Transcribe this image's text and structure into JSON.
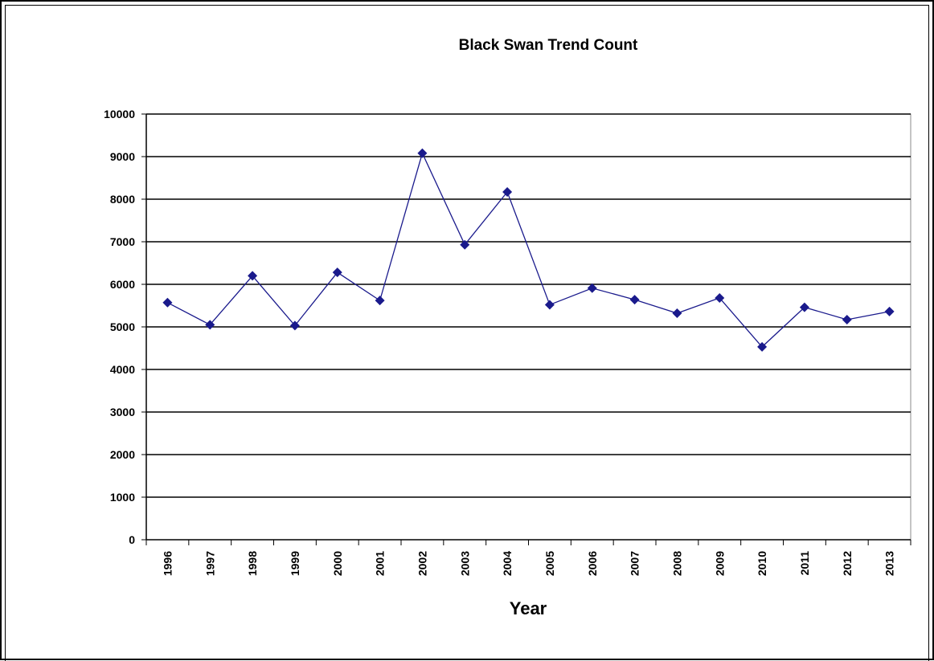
{
  "chart_data": {
    "type": "line",
    "title": "Black Swan Trend Count",
    "xlabel": "Year",
    "ylabel": "",
    "ylim": [
      0,
      10000
    ],
    "ytick_step": 1000,
    "grid": "horizontal",
    "categories": [
      "1996",
      "1997",
      "1998",
      "1999",
      "2000",
      "2001",
      "2002",
      "2003",
      "2004",
      "2005",
      "2006",
      "2007",
      "2008",
      "2009",
      "2010",
      "2011",
      "2012",
      "2013"
    ],
    "series": [
      {
        "values": [
          5570,
          5050,
          6200,
          5030,
          6280,
          5620,
          9080,
          6930,
          8170,
          5520,
          5910,
          5640,
          5320,
          5680,
          4530,
          5460,
          5170,
          5360
        ],
        "color": "#1a1a8c",
        "marker": "diamond"
      }
    ]
  }
}
